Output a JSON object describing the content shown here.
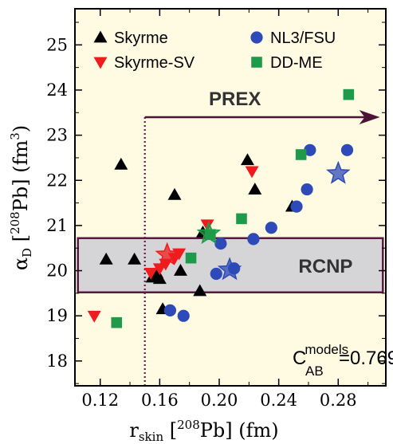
{
  "chart_data": {
    "type": "scatter",
    "xlabel": {
      "main": "r",
      "sub": "skin",
      "bracket_open": " [",
      "sup": "208",
      "element": "Pb] (fm)"
    },
    "ylabel": {
      "main": "α",
      "sub": "D",
      "bracket_open": " [",
      "sup": "208",
      "element": "Pb] (fm",
      "unit_sup": "3",
      "close": ")"
    },
    "xlim": [
      0.103,
      0.312
    ],
    "ylim": [
      17.45,
      25.8
    ],
    "xticks": [
      "0.12",
      "0.16",
      "0.20",
      "0.24",
      "0.28"
    ],
    "xtick_values": [
      0.12,
      0.16,
      0.2,
      0.24,
      0.28
    ],
    "yticks": [
      "18",
      "19",
      "20",
      "21",
      "22",
      "23",
      "24",
      "25"
    ],
    "ytick_values": [
      18,
      19,
      20,
      21,
      22,
      23,
      24,
      25
    ],
    "legend": [
      {
        "name": "Skyrme",
        "marker": "triangle-up",
        "color": "#000000"
      },
      {
        "name": "Skyrme-SV",
        "marker": "triangle-down",
        "color": "#ee1c1c"
      },
      {
        "name": "NL3/FSU",
        "marker": "circle",
        "color": "#2e49b8"
      },
      {
        "name": "DD-ME",
        "marker": "square",
        "color": "#1f9a4a"
      }
    ],
    "series": [
      {
        "name": "Skyrme",
        "marker": "triangle-up",
        "color": "#000000",
        "points": [
          [
            0.124,
            20.25
          ],
          [
            0.134,
            22.35
          ],
          [
            0.143,
            20.25
          ],
          [
            0.155,
            19.85
          ],
          [
            0.158,
            19.95
          ],
          [
            0.16,
            19.82
          ],
          [
            0.162,
            19.15
          ],
          [
            0.17,
            21.68
          ],
          [
            0.174,
            20.0
          ],
          [
            0.187,
            19.55
          ],
          [
            0.189,
            20.85
          ],
          [
            0.219,
            22.45
          ],
          [
            0.224,
            21.8
          ],
          [
            0.249,
            21.42
          ]
        ]
      },
      {
        "name": "Skyrme-SV",
        "marker": "triangle-down",
        "color": "#ee1c1c",
        "points": [
          [
            0.116,
            19.0
          ],
          [
            0.154,
            19.95
          ],
          [
            0.16,
            20.05
          ],
          [
            0.164,
            20.15
          ],
          [
            0.17,
            20.28
          ],
          [
            0.173,
            20.38
          ],
          [
            0.192,
            21.02
          ],
          [
            0.222,
            22.2
          ]
        ]
      },
      {
        "name": "NL3/FSU",
        "marker": "circle",
        "color": "#2e49b8",
        "points": [
          [
            0.167,
            19.12
          ],
          [
            0.176,
            19.0
          ],
          [
            0.198,
            19.93
          ],
          [
            0.201,
            20.6
          ],
          [
            0.21,
            20.05
          ],
          [
            0.223,
            20.7
          ],
          [
            0.235,
            20.95
          ],
          [
            0.252,
            21.42
          ],
          [
            0.259,
            21.8
          ],
          [
            0.261,
            22.67
          ],
          [
            0.286,
            22.67
          ]
        ]
      },
      {
        "name": "DD-ME",
        "marker": "square",
        "color": "#1f9a4a",
        "points": [
          [
            0.131,
            18.85
          ],
          [
            0.181,
            20.28
          ],
          [
            0.194,
            20.8
          ],
          [
            0.215,
            21.15
          ],
          [
            0.255,
            22.57
          ],
          [
            0.287,
            23.9
          ]
        ]
      }
    ],
    "stars": [
      {
        "x": 0.165,
        "y": 20.35,
        "color": "#ee1c1c"
      },
      {
        "x": 0.193,
        "y": 20.82,
        "color": "#1f9a4a"
      },
      {
        "x": 0.207,
        "y": 20.02,
        "color": "#2e49b8"
      },
      {
        "x": 0.28,
        "y": 22.15,
        "color": "#2e49b8"
      }
    ],
    "prex": {
      "label": "PREX",
      "x_start": 0.15,
      "x_end": 0.308,
      "y": 23.4
    },
    "rcnp": {
      "label": "RCNP",
      "ymin": 19.52,
      "ymax": 20.72,
      "xmin": 0.105,
      "xmax": 0.31
    },
    "correlation": {
      "symbol": "C",
      "sub": "AB",
      "sup": "models",
      "value": "=0.769"
    },
    "colors": {
      "plot_background": "#fffbe3",
      "band_fill": "#d5d5d7",
      "band_stroke": "#5a1842",
      "prex_color": "#4b1338",
      "vline_color": "#6a1a50"
    }
  }
}
